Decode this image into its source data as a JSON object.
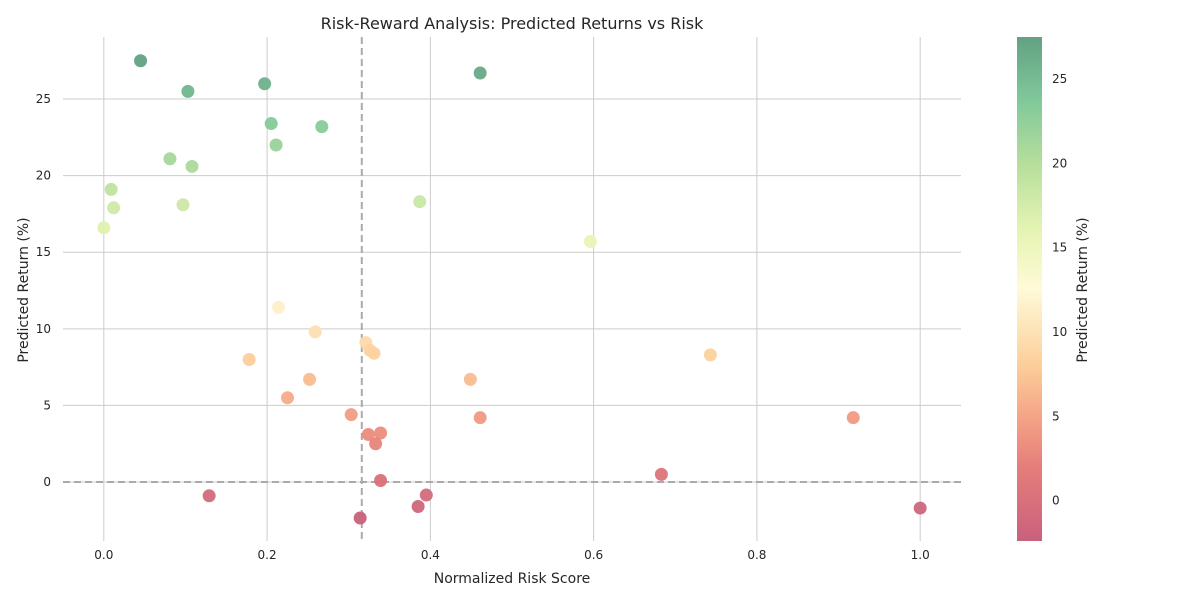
{
  "chart_data": {
    "type": "scatter",
    "title": "Risk-Reward Analysis: Predicted Returns vs Risk",
    "xlabel": "Normalized Risk Score",
    "ylabel": "Predicted Return (%)",
    "xlim": [
      -0.05,
      1.05
    ],
    "ylim": [
      -3.85,
      29.05
    ],
    "x_ticks": [
      0.0,
      0.2,
      0.4,
      0.6,
      0.8,
      1.0
    ],
    "x_tick_labels": [
      "0.0",
      "0.2",
      "0.4",
      "0.6",
      "0.8",
      "1.0"
    ],
    "y_ticks": [
      0,
      5,
      10,
      15,
      20,
      25
    ],
    "y_tick_labels": [
      "0",
      "5",
      "10",
      "15",
      "20",
      "25"
    ],
    "grid": true,
    "reference_lines": {
      "vertical_x": 0.316,
      "horizontal_y": 0
    },
    "colorbar": {
      "label": "Predicted Return (%)",
      "colormap": "RdYlGn",
      "range": [
        -2.4,
        27.5
      ],
      "ticks": [
        0,
        5,
        10,
        15,
        20,
        25
      ],
      "tick_labels": [
        "0",
        "5",
        "10",
        "15",
        "20",
        "25"
      ]
    },
    "points": [
      {
        "x": 0.045,
        "y": 27.5
      },
      {
        "x": 0.103,
        "y": 25.5
      },
      {
        "x": 0.197,
        "y": 26.0
      },
      {
        "x": 0.461,
        "y": 26.7
      },
      {
        "x": 0.205,
        "y": 23.4
      },
      {
        "x": 0.267,
        "y": 23.2
      },
      {
        "x": 0.211,
        "y": 22.0
      },
      {
        "x": 0.081,
        "y": 21.1
      },
      {
        "x": 0.108,
        "y": 20.6
      },
      {
        "x": 0.009,
        "y": 19.1
      },
      {
        "x": 0.012,
        "y": 17.9
      },
      {
        "x": 0.097,
        "y": 18.1
      },
      {
        "x": 0.0,
        "y": 16.6
      },
      {
        "x": 0.387,
        "y": 18.3
      },
      {
        "x": 0.596,
        "y": 15.7
      },
      {
        "x": 0.214,
        "y": 11.4
      },
      {
        "x": 0.259,
        "y": 9.8
      },
      {
        "x": 0.178,
        "y": 8.0
      },
      {
        "x": 0.321,
        "y": 9.1
      },
      {
        "x": 0.326,
        "y": 8.6
      },
      {
        "x": 0.331,
        "y": 8.4
      },
      {
        "x": 0.743,
        "y": 8.3
      },
      {
        "x": 0.252,
        "y": 6.7
      },
      {
        "x": 0.449,
        "y": 6.7
      },
      {
        "x": 0.225,
        "y": 5.5
      },
      {
        "x": 0.303,
        "y": 4.4
      },
      {
        "x": 0.461,
        "y": 4.2
      },
      {
        "x": 0.918,
        "y": 4.2
      },
      {
        "x": 0.324,
        "y": 3.1
      },
      {
        "x": 0.339,
        "y": 3.2
      },
      {
        "x": 0.333,
        "y": 2.5
      },
      {
        "x": 0.683,
        "y": 0.5
      },
      {
        "x": 0.339,
        "y": 0.1
      },
      {
        "x": 0.129,
        "y": -0.9
      },
      {
        "x": 0.395,
        "y": -0.85
      },
      {
        "x": 0.385,
        "y": -1.6
      },
      {
        "x": 0.314,
        "y": -2.35
      },
      {
        "x": 1.0,
        "y": -1.7
      }
    ]
  }
}
